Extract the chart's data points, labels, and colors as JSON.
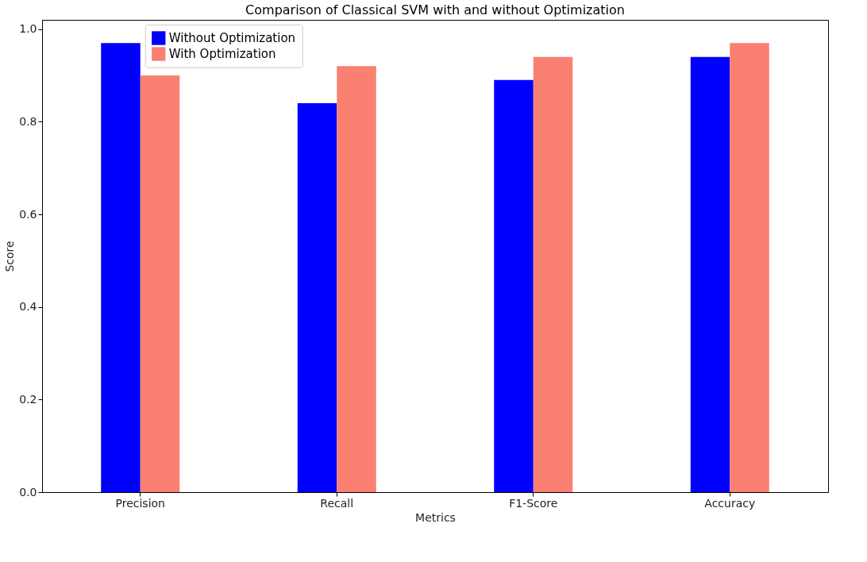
{
  "chart_data": {
    "type": "bar",
    "title": "Comparison of Classical SVM with and without Optimization",
    "xlabel": "Metrics",
    "ylabel": "Score",
    "categories": [
      "Precision",
      "Recall",
      "F1-Score",
      "Accuracy"
    ],
    "series": [
      {
        "name": "Without Optimization",
        "color": "#0000ff",
        "values": [
          0.97,
          0.84,
          0.89,
          0.94
        ]
      },
      {
        "name": "With Optimization",
        "color": "#fa8072",
        "values": [
          0.9,
          0.92,
          0.94,
          0.97
        ]
      }
    ],
    "ylim": [
      0,
      1.02
    ],
    "yticks": [
      {
        "value": 0,
        "label": "0.0"
      },
      0.2,
      0.4,
      0.6,
      0.8,
      {
        "value": 1,
        "label": "1.0"
      }
    ],
    "grid": false,
    "legend": "top left"
  }
}
